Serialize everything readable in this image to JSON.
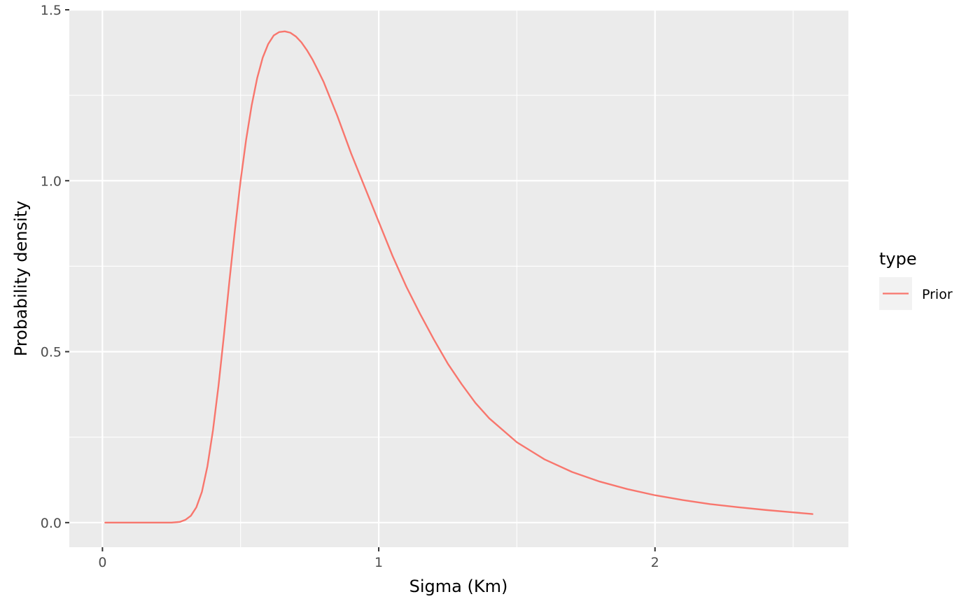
{
  "chart_data": {
    "type": "line",
    "title": "",
    "xlabel": "Sigma (Km)",
    "ylabel": "Probability density",
    "xlim": [
      -0.12,
      2.7
    ],
    "ylim": [
      -0.072,
      1.5
    ],
    "x_ticks": [
      0,
      1,
      2
    ],
    "x_tick_labels": [
      "0",
      "1",
      "2"
    ],
    "y_ticks": [
      0.0,
      0.5,
      1.0,
      1.5
    ],
    "y_tick_labels": [
      "0.0",
      "0.5",
      "1.0",
      "1.5"
    ],
    "grid": true,
    "legend": {
      "title": "type",
      "placement": "right",
      "entries": [
        "Prior"
      ]
    },
    "colors": {
      "panel": "#ebebeb",
      "grid": "#ffffff",
      "series": "#f8766d"
    },
    "series": [
      {
        "name": "Prior",
        "x": [
          0.01,
          0.1,
          0.2,
          0.25,
          0.28,
          0.3,
          0.32,
          0.34,
          0.36,
          0.38,
          0.4,
          0.42,
          0.44,
          0.46,
          0.48,
          0.5,
          0.52,
          0.54,
          0.56,
          0.58,
          0.6,
          0.62,
          0.64,
          0.66,
          0.68,
          0.7,
          0.72,
          0.74,
          0.76,
          0.78,
          0.8,
          0.85,
          0.9,
          0.95,
          1.0,
          1.05,
          1.1,
          1.15,
          1.2,
          1.25,
          1.3,
          1.35,
          1.4,
          1.5,
          1.6,
          1.7,
          1.8,
          1.9,
          2.0,
          2.1,
          2.2,
          2.3,
          2.4,
          2.5,
          2.57
        ],
        "y": [
          0.0,
          0.0,
          0.0,
          0.0,
          0.002,
          0.008,
          0.02,
          0.045,
          0.09,
          0.165,
          0.27,
          0.4,
          0.55,
          0.71,
          0.86,
          1.0,
          1.12,
          1.22,
          1.3,
          1.36,
          1.4,
          1.425,
          1.435,
          1.437,
          1.433,
          1.422,
          1.405,
          1.382,
          1.355,
          1.323,
          1.29,
          1.19,
          1.08,
          0.98,
          0.88,
          0.78,
          0.69,
          0.61,
          0.535,
          0.465,
          0.405,
          0.35,
          0.305,
          0.235,
          0.185,
          0.148,
          0.12,
          0.098,
          0.08,
          0.066,
          0.054,
          0.045,
          0.037,
          0.03,
          0.025
        ]
      }
    ]
  }
}
